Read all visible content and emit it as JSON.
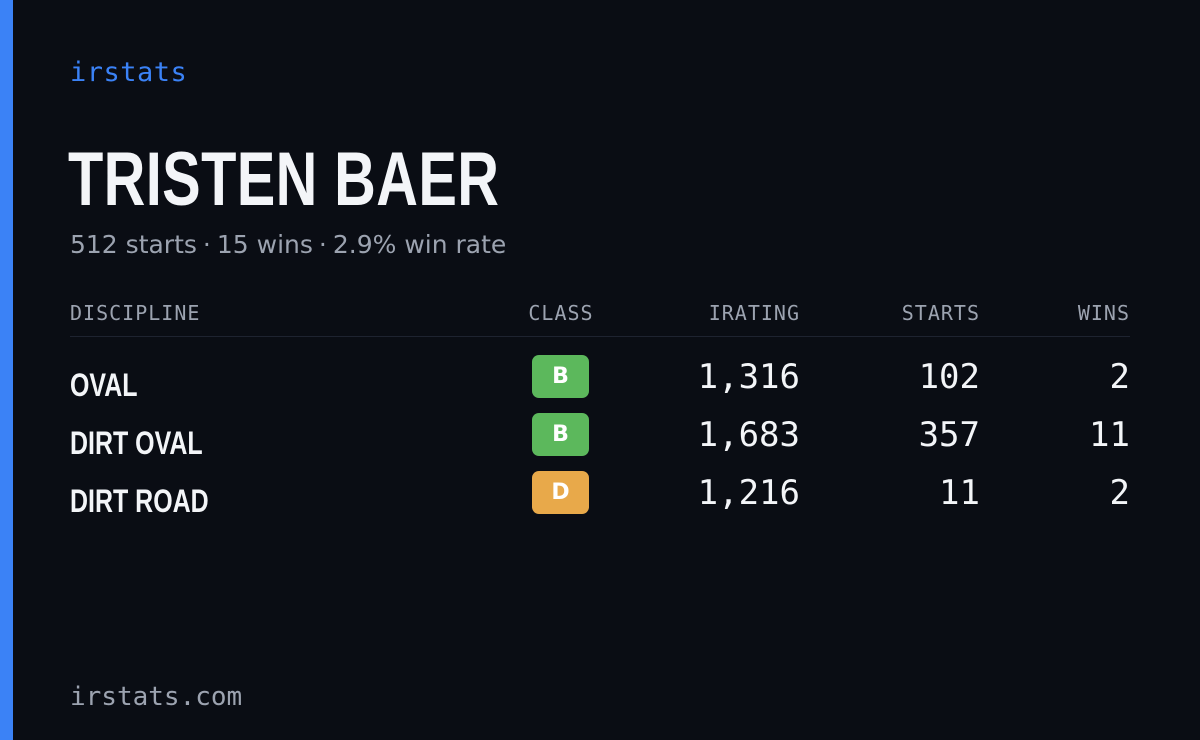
{
  "colors": {
    "background": "#0a0d14",
    "accent": "#3b82f6",
    "text_primary": "#f3f5f8",
    "text_muted": "#9ca3b0",
    "class_b": "#5cb85c",
    "class_d": "#e8a94a"
  },
  "brand": "irstats",
  "driver": {
    "name": "TRISTEN BAER"
  },
  "summary": {
    "starts": "512 starts",
    "wins": "15 wins",
    "win_rate": "2.9% win rate",
    "separator": "·"
  },
  "table": {
    "headers": {
      "discipline": "DISCIPLINE",
      "class": "CLASS",
      "irating": "IRATING",
      "starts": "STARTS",
      "wins": "WINS"
    },
    "rows": [
      {
        "discipline": "OVAL",
        "class": "B",
        "class_color": "#5cb85c",
        "irating": "1,316",
        "starts": "102",
        "wins": "2"
      },
      {
        "discipline": "DIRT OVAL",
        "class": "B",
        "class_color": "#5cb85c",
        "irating": "1,683",
        "starts": "357",
        "wins": "11"
      },
      {
        "discipline": "DIRT ROAD",
        "class": "D",
        "class_color": "#e8a94a",
        "irating": "1,216",
        "starts": "11",
        "wins": "2"
      }
    ]
  },
  "footer": {
    "domain": "irstats.com"
  }
}
